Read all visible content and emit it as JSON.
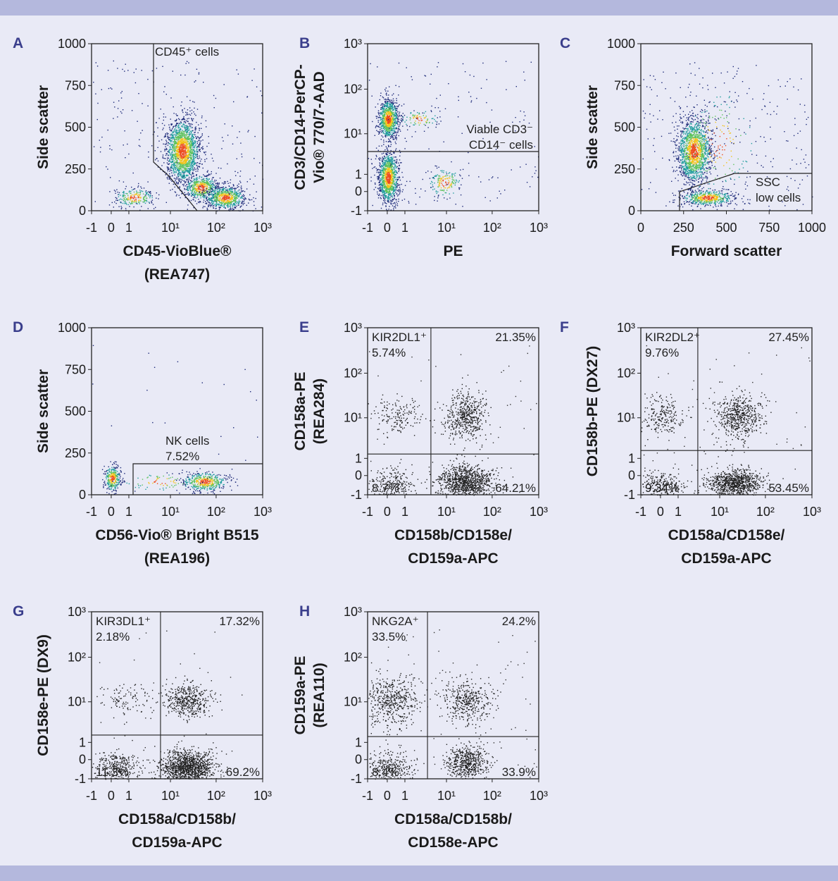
{
  "panels": [
    {
      "letter": "A",
      "y_label": [
        "Side scatter"
      ],
      "x_label": [
        "CD45-VioBlue®",
        "(REA747)"
      ],
      "x_ticks": [
        "-1",
        "0",
        "1",
        "10¹",
        "10²",
        "10³"
      ],
      "y_ticks": [
        "0",
        "250",
        "500",
        "750",
        "1000"
      ],
      "gate_label": [
        "CD45⁺ cells"
      ]
    },
    {
      "letter": "B",
      "y_label": [
        "CD3/CD14-PerCP-",
        "Vio® 770/7-AAD"
      ],
      "x_label": [
        "PE"
      ],
      "x_ticks": [
        "-1",
        "0",
        "1",
        "10¹",
        "10²",
        "10³"
      ],
      "y_ticks": [
        "-1",
        "0",
        "1",
        "10¹",
        "10²",
        "10³"
      ],
      "gate_label": [
        "Viable CD3⁻",
        "CD14⁻ cells"
      ]
    },
    {
      "letter": "C",
      "y_label": [
        "Side scatter"
      ],
      "x_label": [
        "Forward scatter"
      ],
      "x_ticks": [
        "0",
        "250",
        "500",
        "750",
        "1000"
      ],
      "y_ticks": [
        "0",
        "250",
        "500",
        "750",
        "1000"
      ],
      "gate_label": [
        "SSC",
        "low cells"
      ]
    },
    {
      "letter": "D",
      "y_label": [
        "Side scatter"
      ],
      "x_label": [
        "CD56-Vio® Bright B515",
        "(REA196)"
      ],
      "x_ticks": [
        "-1",
        "0",
        "1",
        "10¹",
        "10²",
        "10³"
      ],
      "y_ticks": [
        "0",
        "250",
        "500",
        "750",
        "1000"
      ],
      "gate_label": [
        "NK cells",
        "7.52%"
      ]
    },
    {
      "letter": "E",
      "y_label": [
        "CD158a-PE",
        "(REA284)"
      ],
      "x_label": [
        "CD158b/CD158e/",
        "CD159a-APC"
      ],
      "x_ticks": [
        "-1",
        "0",
        "1",
        "10¹",
        "10²",
        "10³"
      ],
      "y_ticks": [
        "-1",
        "0",
        "1",
        "10¹",
        "10²",
        "10³"
      ],
      "quadrant_labels": {
        "upper_left": [
          "KIR2DL1⁺",
          "5.74%"
        ],
        "upper_right": "21.35%",
        "lower_left": "8.7%",
        "lower_right": "64.21%"
      }
    },
    {
      "letter": "F",
      "y_label": [
        "CD158b-PE (DX27)"
      ],
      "x_label": [
        "CD158a/CD158e/",
        "CD159a-APC"
      ],
      "x_ticks": [
        "-1",
        "0",
        "1",
        "10¹",
        "10²",
        "10³"
      ],
      "y_ticks": [
        "-1",
        "0",
        "1",
        "10¹",
        "10²",
        "10³"
      ],
      "quadrant_labels": {
        "upper_left": [
          "KIR2DL2⁺",
          "9.76%"
        ],
        "upper_right": "27.45%",
        "lower_left": "9.34%",
        "lower_right": "53.45%"
      }
    },
    {
      "letter": "G",
      "y_label": [
        "CD158e-PE (DX9)"
      ],
      "x_label": [
        "CD158a/CD158b/",
        "CD159a-APC"
      ],
      "x_ticks": [
        "-1",
        "0",
        "1",
        "10¹",
        "10²",
        "10³"
      ],
      "y_ticks": [
        "-1",
        "0",
        "1",
        "10¹",
        "10²",
        "10³"
      ],
      "quadrant_labels": {
        "upper_left": [
          "KIR3DL1⁺",
          "2.18%"
        ],
        "upper_right": "17.32%",
        "lower_left": "11.3%",
        "lower_right": "69.2%"
      }
    },
    {
      "letter": "H",
      "y_label": [
        "CD159a-PE",
        "(REA110)"
      ],
      "x_label": [
        "CD158a/CD158b/",
        "CD158e-APC"
      ],
      "x_ticks": [
        "-1",
        "0",
        "1",
        "10¹",
        "10²",
        "10³"
      ],
      "y_ticks": [
        "-1",
        "0",
        "1",
        "10¹",
        "10²",
        "10³"
      ],
      "quadrant_labels": {
        "upper_left": [
          "NKG2A⁺",
          "33.5%"
        ],
        "upper_right": "24.2%",
        "lower_left": "8.4%",
        "lower_right": "33.9%"
      }
    }
  ]
}
